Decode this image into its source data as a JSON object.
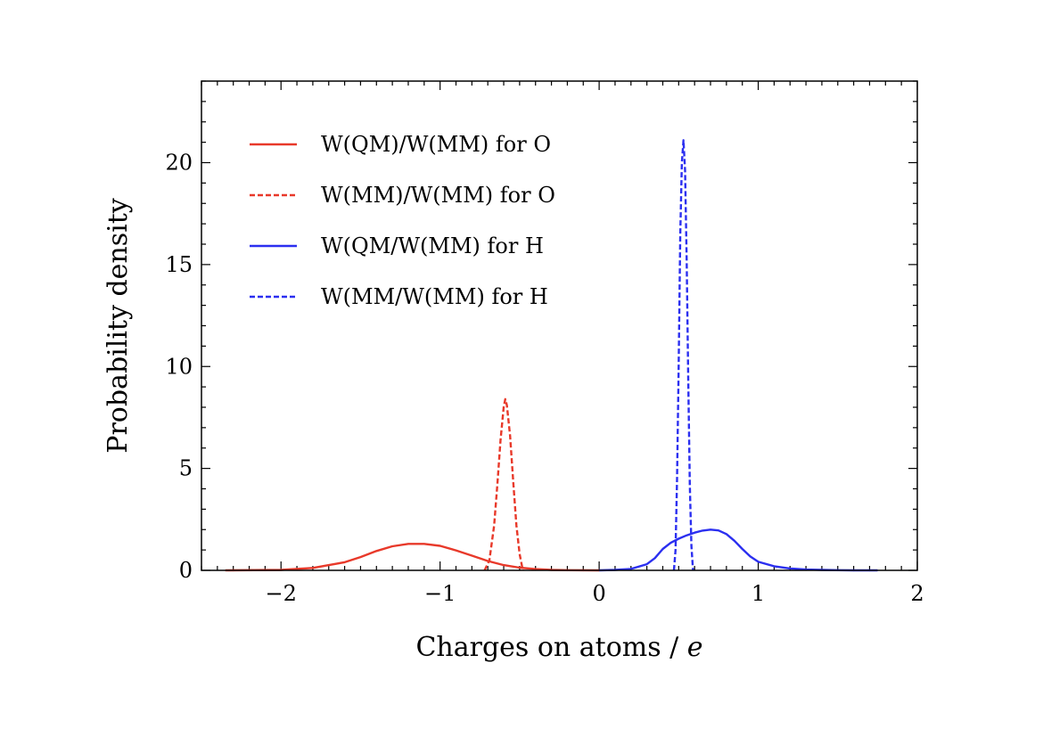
{
  "chart_data": {
    "type": "line",
    "title": "",
    "xlabel": "Charges on atoms",
    "xlabel_sep": " / ",
    "xlabel_unit": "e",
    "ylabel": "Probability density",
    "xlim": [
      -2.5,
      2.0
    ],
    "ylim": [
      0,
      24
    ],
    "xticks": [
      -2,
      -1,
      0,
      1,
      2
    ],
    "xtick_labels": [
      "−2",
      "−1",
      "0",
      "1",
      "2"
    ],
    "yticks": [
      0,
      5,
      10,
      15,
      20
    ],
    "ytick_labels": [
      "0",
      "5",
      "10",
      "15",
      "20"
    ],
    "grid": false,
    "legend_position": "top-left",
    "series": [
      {
        "name": "W(QM)/W(MM) for O",
        "color": "#e8392a",
        "dash": "solid",
        "x": [
          -2.35,
          -2.0,
          -1.8,
          -1.6,
          -1.5,
          -1.4,
          -1.3,
          -1.2,
          -1.1,
          -1.0,
          -0.9,
          -0.8,
          -0.7,
          -0.6,
          -0.5,
          -0.4,
          -0.3,
          -0.2,
          0.0
        ],
        "y": [
          0.0,
          0.02,
          0.12,
          0.4,
          0.65,
          0.95,
          1.18,
          1.3,
          1.3,
          1.2,
          0.98,
          0.72,
          0.46,
          0.26,
          0.13,
          0.06,
          0.02,
          0.01,
          0.0
        ]
      },
      {
        "name": "W(MM)/W(MM) for O",
        "color": "#e8392a",
        "dash": "dashed",
        "x": [
          -0.72,
          -0.69,
          -0.66,
          -0.64,
          -0.62,
          -0.6,
          -0.59,
          -0.58,
          -0.56,
          -0.54,
          -0.52,
          -0.5,
          -0.48
        ],
        "y": [
          0.0,
          0.5,
          2.2,
          4.2,
          6.4,
          8.0,
          8.4,
          8.1,
          6.6,
          4.3,
          2.2,
          0.8,
          0.0
        ]
      },
      {
        "name": "W(QM/W(MM) for H",
        "color": "#2b2ff0",
        "dash": "solid",
        "x": [
          0.0,
          0.1,
          0.2,
          0.3,
          0.35,
          0.4,
          0.45,
          0.5,
          0.55,
          0.6,
          0.65,
          0.7,
          0.75,
          0.8,
          0.85,
          0.9,
          0.95,
          1.0,
          1.1,
          1.2,
          1.3,
          1.4,
          1.5,
          1.6,
          1.75
        ],
        "y": [
          0.0,
          0.02,
          0.07,
          0.3,
          0.6,
          1.05,
          1.35,
          1.55,
          1.72,
          1.85,
          1.95,
          2.0,
          1.96,
          1.78,
          1.45,
          1.05,
          0.68,
          0.42,
          0.2,
          0.09,
          0.04,
          0.02,
          0.01,
          0.0,
          0.0
        ]
      },
      {
        "name": "W(MM/W(MM) for H",
        "color": "#2b2ff0",
        "dash": "dashed",
        "x": [
          0.47,
          0.48,
          0.49,
          0.5,
          0.51,
          0.52,
          0.53,
          0.54,
          0.55,
          0.56,
          0.57,
          0.58,
          0.59
        ],
        "y": [
          0.0,
          1.0,
          4.5,
          10.0,
          16.5,
          20.0,
          21.1,
          19.6,
          15.2,
          9.5,
          4.2,
          1.2,
          0.0
        ]
      }
    ]
  }
}
